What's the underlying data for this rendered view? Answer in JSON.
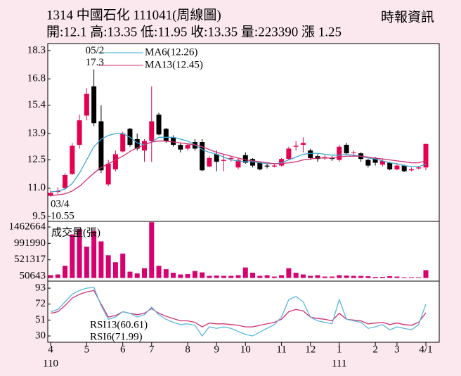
{
  "header": {
    "title": "1314  中國石化 111041(周線圖)",
    "source": "時報資訊",
    "quote": "開:12.1 高:13.35 低:11.95 收:13.35 量:223390 漲 1.25"
  },
  "chart_data": [
    {
      "type": "candlestick",
      "categories": [
        "4",
        null,
        null,
        null,
        null,
        "5",
        null,
        null,
        null,
        null,
        "6",
        null,
        null,
        null,
        "7",
        null,
        null,
        null,
        null,
        "8",
        null,
        null,
        null,
        "9",
        null,
        null,
        null,
        "10",
        null,
        null,
        null,
        null,
        "11",
        null,
        null,
        null,
        "12",
        null,
        null,
        null,
        "1",
        null,
        null,
        null,
        null,
        "2",
        null,
        null,
        "3",
        null,
        null,
        null,
        "4/1"
      ],
      "year_labels": [
        "110",
        null,
        null,
        null,
        null,
        null,
        null,
        null,
        null,
        null,
        null,
        null,
        null,
        null,
        null,
        null,
        null,
        null,
        null,
        null,
        null,
        null,
        null,
        null,
        null,
        null,
        null,
        null,
        null,
        null,
        null,
        null,
        null,
        null,
        null,
        null,
        null,
        null,
        null,
        null,
        "111",
        null,
        null,
        null,
        null,
        null,
        null,
        null,
        null,
        null,
        null,
        null,
        null
      ],
      "open": [
        10.6,
        10.8,
        11.0,
        11.75,
        13.3,
        14.85,
        16.4,
        14.55,
        11.2,
        12.0,
        12.95,
        14.15,
        13.6,
        13.0,
        13.5,
        14.9,
        14.15,
        13.7,
        13.3,
        13.1,
        13.45,
        13.45,
        12.15,
        12.8,
        12.45,
        12.55,
        12.1,
        12.75,
        12.55,
        12.35,
        12.2,
        12.15,
        12.2,
        12.55,
        13.2,
        13.3,
        13.0,
        12.7,
        12.6,
        12.6,
        12.5,
        13.3,
        12.9,
        12.85,
        12.5,
        12.6,
        12.25,
        12.35,
        12.0,
        12.2,
        11.95,
        12.05,
        12.1
      ],
      "high": [
        10.9,
        11.05,
        11.8,
        13.4,
        14.9,
        16.3,
        17.3,
        15.4,
        12.5,
        13.0,
        14.0,
        14.2,
        13.9,
        13.6,
        16.4,
        15.0,
        14.2,
        13.8,
        13.4,
        13.35,
        13.6,
        13.6,
        12.7,
        13.0,
        12.8,
        12.7,
        12.6,
        12.9,
        12.6,
        12.4,
        12.3,
        12.3,
        12.6,
        13.2,
        13.5,
        13.7,
        13.1,
        12.8,
        12.75,
        12.7,
        13.3,
        13.4,
        13.0,
        12.9,
        12.55,
        12.65,
        12.55,
        12.4,
        12.3,
        12.25,
        12.1,
        12.15,
        13.35
      ],
      "low": [
        10.55,
        10.7,
        10.95,
        11.7,
        13.1,
        14.6,
        14.3,
        11.8,
        11.1,
        11.9,
        12.9,
        13.2,
        13.0,
        12.4,
        12.4,
        13.8,
        13.4,
        13.2,
        12.9,
        13.0,
        13.0,
        11.9,
        12.1,
        11.9,
        11.9,
        12.4,
        12.0,
        12.3,
        12.1,
        11.95,
        12.05,
        12.1,
        12.15,
        12.5,
        13.0,
        12.9,
        12.5,
        12.4,
        12.5,
        12.45,
        12.4,
        12.8,
        12.7,
        12.4,
        12.1,
        12.2,
        12.15,
        11.95,
        11.95,
        11.85,
        11.9,
        12.0,
        11.95
      ],
      "close": [
        10.75,
        10.85,
        11.7,
        13.25,
        14.6,
        16.0,
        14.45,
        11.95,
        12.3,
        12.8,
        13.9,
        13.3,
        13.1,
        13.5,
        14.55,
        13.85,
        13.5,
        13.3,
        13.05,
        13.3,
        13.1,
        11.95,
        12.6,
        12.4,
        12.5,
        12.6,
        12.5,
        12.35,
        12.2,
        12.0,
        12.15,
        12.2,
        12.55,
        13.1,
        13.25,
        13.4,
        12.6,
        12.55,
        12.65,
        12.55,
        13.2,
        12.85,
        12.9,
        12.55,
        12.2,
        12.35,
        12.45,
        12.0,
        12.2,
        11.9,
        12.0,
        12.1,
        13.35
      ],
      "up_color": "#e4004f",
      "down_color": "#000000",
      "series": [
        {
          "name": "MA6(12.26)",
          "color": "#3ea7d2",
          "values": [
            10.8,
            10.85,
            10.95,
            11.25,
            11.8,
            12.5,
            13.2,
            13.6,
            13.8,
            13.9,
            13.9,
            13.7,
            13.4,
            13.3,
            13.45,
            13.7,
            13.7,
            13.7,
            13.6,
            13.5,
            13.3,
            13.05,
            12.9,
            12.8,
            12.65,
            12.5,
            12.45,
            12.4,
            12.4,
            12.35,
            12.3,
            12.3,
            12.35,
            12.5,
            12.65,
            12.8,
            12.85,
            12.85,
            12.8,
            12.75,
            12.75,
            12.8,
            12.75,
            12.7,
            12.6,
            12.55,
            12.45,
            12.35,
            12.3,
            12.2,
            12.15,
            12.15,
            12.26
          ]
        },
        {
          "name": "MA13(12.45)",
          "color": "#d12f73",
          "values": [
            10.6,
            10.65,
            10.7,
            10.85,
            11.1,
            11.45,
            11.8,
            12.1,
            12.3,
            12.5,
            12.7,
            12.95,
            13.15,
            13.3,
            13.45,
            13.5,
            13.5,
            13.45,
            13.4,
            13.35,
            13.3,
            13.2,
            13.05,
            12.9,
            12.8,
            12.7,
            12.6,
            12.5,
            12.45,
            12.4,
            12.35,
            12.3,
            12.3,
            12.35,
            12.4,
            12.5,
            12.55,
            12.6,
            12.6,
            12.6,
            12.65,
            12.7,
            12.7,
            12.7,
            12.65,
            12.6,
            12.55,
            12.5,
            12.45,
            12.4,
            12.35,
            12.35,
            12.45
          ]
        }
      ],
      "annotations": [
        {
          "date": "05/2",
          "value": 17.3,
          "value_label": "17.3"
        },
        {
          "date": "03/4",
          "value": 10.55,
          "value_label": "10.55"
        }
      ],
      "ylim": [
        9.24,
        18.67
      ],
      "yticks": [
        18.3,
        16.8,
        15.4,
        13.9,
        12.5,
        {
          "value": 11,
          "label": "11.0"
        },
        9.5
      ]
    },
    {
      "type": "bar",
      "title": "成交量(張)",
      "color": "#d6006e",
      "values": [
        80000,
        100000,
        350000,
        1250000,
        1400000,
        900000,
        1350000,
        1050000,
        650000,
        450000,
        700000,
        180000,
        130000,
        280000,
        1600000,
        350000,
        250000,
        150000,
        100000,
        110000,
        200000,
        160000,
        60000,
        70000,
        60000,
        60000,
        80000,
        300000,
        150000,
        60000,
        80000,
        40000,
        80000,
        280000,
        150000,
        100000,
        60000,
        80000,
        40000,
        40000,
        80000,
        70000,
        60000,
        60000,
        50000,
        30000,
        30000,
        50000,
        40000,
        20000,
        20000,
        20000,
        223390
      ],
      "ylim": [
        -90561,
        1624040
      ],
      "yticks": [
        1462664,
        991990,
        521317,
        50643
      ]
    },
    {
      "type": "line",
      "series": [
        {
          "name": "RSI13(60.61)",
          "color": "#d12f73",
          "values": [
            60,
            62,
            70,
            80,
            85,
            88,
            90,
            72,
            55,
            57,
            62,
            60,
            58,
            60,
            66,
            60,
            56,
            53,
            50,
            50,
            48,
            42,
            47,
            46,
            46,
            45,
            44,
            42,
            42,
            44,
            46,
            48,
            52,
            62,
            65,
            63,
            55,
            53,
            52,
            50,
            60,
            52,
            51,
            50,
            46,
            47,
            48,
            45,
            47,
            45,
            44,
            48,
            60.61
          ]
        },
        {
          "name": "RSI6(71.99)",
          "color": "#5ab6df",
          "values": [
            62,
            65,
            75,
            85,
            90,
            93,
            94,
            70,
            52,
            55,
            62,
            60,
            55,
            58,
            68,
            58,
            52,
            48,
            45,
            46,
            44,
            30,
            42,
            40,
            42,
            40,
            36,
            32,
            30,
            35,
            40,
            45,
            55,
            78,
            82,
            75,
            55,
            50,
            48,
            46,
            78,
            52,
            50,
            48,
            40,
            42,
            45,
            38,
            42,
            40,
            38,
            45,
            71.99
          ]
        }
      ],
      "ylim": [
        21.7,
        102.3
      ],
      "yticks": [
        93,
        72,
        51,
        30
      ]
    }
  ]
}
